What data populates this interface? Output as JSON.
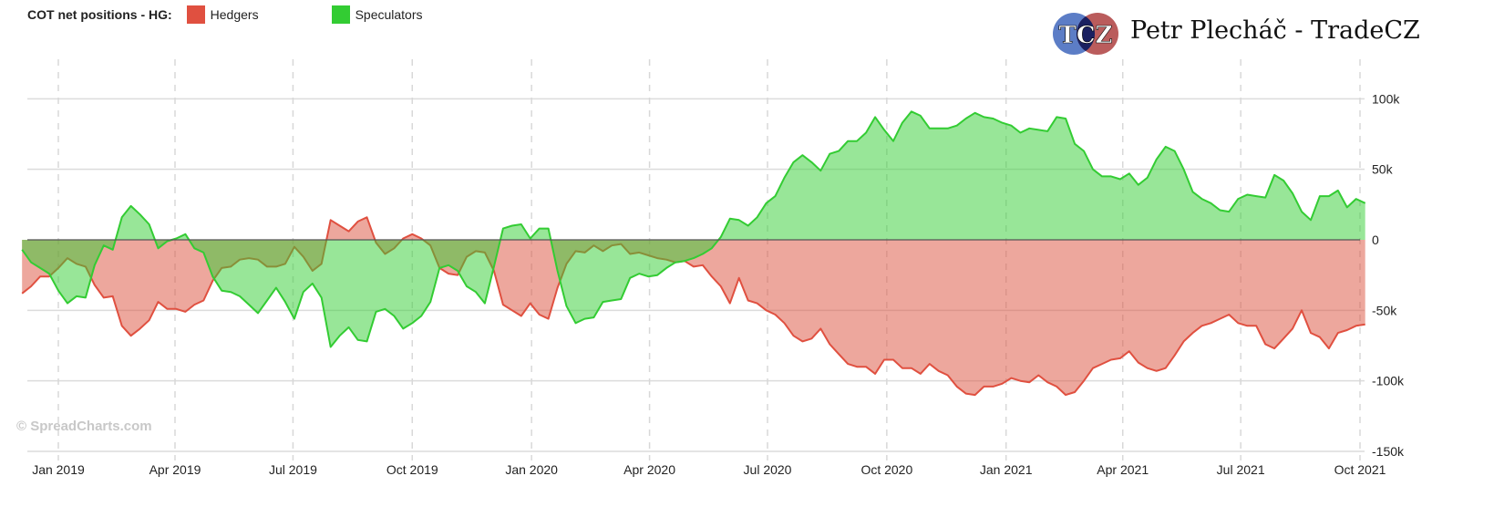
{
  "legend": {
    "title": "COT net positions - HG:",
    "items": [
      {
        "label": "Hedgers",
        "color": "#e05040"
      },
      {
        "label": "Speculators",
        "color": "#33cc33"
      }
    ]
  },
  "branding": {
    "logo_text": "TCZ",
    "author": "Petr Plecháč - TradeCZ",
    "watermark": "© SpreadCharts.com"
  },
  "chart_data": {
    "type": "area",
    "title": "COT net positions - HG",
    "x_start": "2018-12-04",
    "x_step_days": 7,
    "x_ticks": [
      {
        "label": "Jan 2019",
        "date": "2019-01-01"
      },
      {
        "label": "Apr 2019",
        "date": "2019-04-01"
      },
      {
        "label": "Jul 2019",
        "date": "2019-07-01"
      },
      {
        "label": "Oct 2019",
        "date": "2019-10-01"
      },
      {
        "label": "Jan 2020",
        "date": "2020-01-01"
      },
      {
        "label": "Apr 2020",
        "date": "2020-04-01"
      },
      {
        "label": "Jul 2020",
        "date": "2020-07-01"
      },
      {
        "label": "Oct 2020",
        "date": "2020-10-01"
      },
      {
        "label": "Jan 2021",
        "date": "2021-01-01"
      },
      {
        "label": "Apr 2021",
        "date": "2021-04-01"
      },
      {
        "label": "Jul 2021",
        "date": "2021-07-01"
      },
      {
        "label": "Oct 2021",
        "date": "2021-10-01"
      }
    ],
    "y_ticks": [
      {
        "label": "100k",
        "value": 100
      },
      {
        "label": "50k",
        "value": 50
      },
      {
        "label": "0",
        "value": 0
      },
      {
        "label": "-50k",
        "value": -50
      },
      {
        "label": "-100k",
        "value": -100
      },
      {
        "label": "-150k",
        "value": -150
      }
    ],
    "ylim": [
      -150,
      118
    ],
    "yunit": "thousands of contracts",
    "y_axis_side": "right",
    "grid": true,
    "legend_position": "top-left",
    "series": [
      {
        "name": "Hedgers",
        "color": "#e05040",
        "values": [
          -38,
          -33,
          -26,
          -26,
          -20,
          -13,
          -17,
          -19,
          -32,
          -41,
          -40,
          -61,
          -68,
          -63,
          -57,
          -44,
          -49,
          -49,
          -51,
          -46,
          -43,
          -29,
          -20,
          -19,
          -14,
          -13,
          -14,
          -19,
          -19,
          -17,
          -5,
          -12,
          -22,
          -17,
          14,
          10,
          6,
          13,
          16,
          -2,
          -10,
          -6,
          1,
          4,
          1,
          -4,
          -20,
          -24,
          -25,
          -12,
          -8,
          -9,
          -22,
          -46,
          -50,
          -54,
          -45,
          -53,
          -56,
          -34,
          -17,
          -8,
          -9,
          -4,
          -8,
          -4,
          -3,
          -10,
          -9,
          -11,
          -13,
          -14,
          -16,
          -15,
          -19,
          -18,
          -26,
          -33,
          -45,
          -27,
          -43,
          -45,
          -50,
          -53,
          -59,
          -68,
          -72,
          -70,
          -63,
          -74,
          -81,
          -88,
          -90,
          -90,
          -95,
          -85,
          -85,
          -91,
          -91,
          -95,
          -88,
          -93,
          -96,
          -104,
          -109,
          -110,
          -104,
          -104,
          -102,
          -98,
          -100,
          -101,
          -96,
          -101,
          -104,
          -110,
          -108,
          -100,
          -91,
          -88,
          -85,
          -84,
          -79,
          -87,
          -91,
          -93,
          -91,
          -82,
          -72,
          -66,
          -61,
          -59,
          -56,
          -53,
          -59,
          -61,
          -61,
          -74,
          -77,
          -70,
          -63,
          -50,
          -66,
          -69,
          -77,
          -66,
          -64,
          -61,
          -60
        ]
      },
      {
        "name": "Speculators",
        "color": "#33cc33",
        "values": [
          -7,
          -16,
          -20,
          -24,
          -36,
          -45,
          -40,
          -41,
          -18,
          -4,
          -7,
          16,
          24,
          18,
          11,
          -6,
          -1,
          1,
          4,
          -6,
          -9,
          -26,
          -36,
          -37,
          -40,
          -46,
          -52,
          -43,
          -34,
          -44,
          -56,
          -37,
          -31,
          -41,
          -76,
          -68,
          -62,
          -71,
          -72,
          -51,
          -49,
          -54,
          -63,
          -59,
          -54,
          -44,
          -20,
          -18,
          -22,
          -33,
          -37,
          -45,
          -19,
          8,
          10,
          11,
          1,
          8,
          8,
          -22,
          -47,
          -59,
          -56,
          -55,
          -44,
          -43,
          -42,
          -27,
          -24,
          -26,
          -25,
          -20,
          -16,
          -15,
          -13,
          -10,
          -6,
          2,
          15,
          14,
          10,
          16,
          26,
          31,
          44,
          55,
          60,
          55,
          49,
          61,
          63,
          70,
          70,
          76,
          87,
          78,
          70,
          83,
          91,
          88,
          79,
          79,
          79,
          81,
          86,
          90,
          87,
          86,
          83,
          81,
          76,
          79,
          78,
          77,
          87,
          86,
          68,
          63,
          50,
          45,
          45,
          43,
          47,
          39,
          44,
          57,
          66,
          63,
          50,
          34,
          29,
          26,
          21,
          20,
          29,
          32,
          31,
          30,
          46,
          42,
          33,
          20,
          14,
          31,
          31,
          35,
          23,
          29,
          26
        ]
      }
    ]
  }
}
